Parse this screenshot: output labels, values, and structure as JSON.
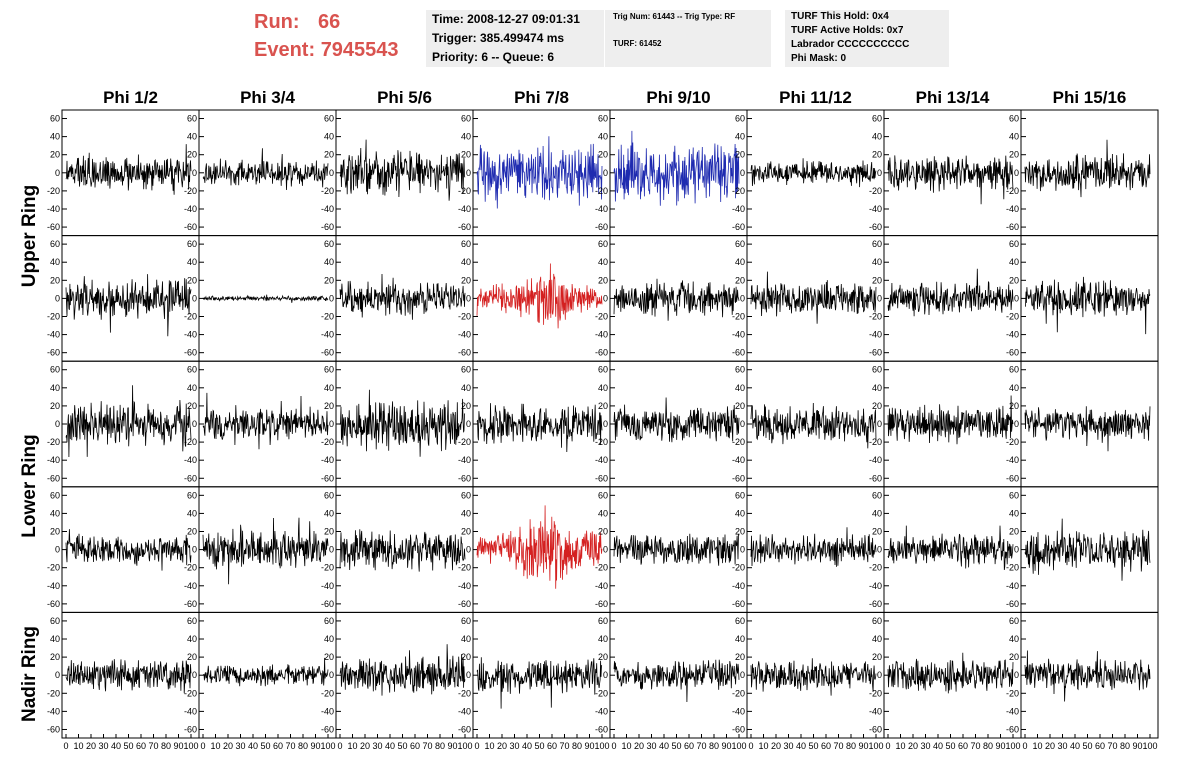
{
  "run": {
    "run_label": "Run:",
    "run_value": "66",
    "event_label": "Event:",
    "event_value": "7945543"
  },
  "info_time": {
    "time": "Time: 2008-12-27 09:01:31",
    "trigger": "Trigger: 385.499474 ms",
    "priority": "Priority: 6 -- Queue: 6"
  },
  "info_trig": {
    "trig": "Trig Num: 61443 -- Trig Type: RF",
    "turf": "TURF: 61452"
  },
  "info_turf": {
    "this_hold": "TURF This Hold: 0x4",
    "active_holds": "TURF Active Holds: 0x7",
    "labrador": "Labrador CCCCCCCCCC",
    "phi_mask": "Phi Mask: 0"
  },
  "columns": [
    "Phi 1/2",
    "Phi 3/4",
    "Phi 5/6",
    "Phi 7/8",
    "Phi 9/10",
    "Phi 11/12",
    "Phi 13/14",
    "Phi 15/16"
  ],
  "row_labels": {
    "upper": "Upper Ring",
    "lower": "Lower Ring",
    "nadir": "Nadir Ring"
  },
  "colors": {
    "normal": "#000000",
    "triggered": "#1f2bb0",
    "triggered_alt": "#d42020",
    "title_red": "#d9534f",
    "box_bg": "#eeeeee"
  },
  "chart_data": {
    "type": "line",
    "layout": "grid of 5 rows x 8 columns of waveform panels",
    "ylim": [
      -65,
      65
    ],
    "xlim": [
      0,
      100
    ],
    "yticks": [
      "60",
      "40",
      "20",
      "0",
      "-20",
      "-40",
      "-60"
    ],
    "xticks": [
      "0",
      "10",
      "20",
      "30",
      "40",
      "50",
      "60",
      "70",
      "80",
      "90",
      "100"
    ],
    "panel_rows": 5,
    "panel_cols": 8,
    "panels": [
      {
        "row": 0,
        "col": 0,
        "color": "normal",
        "amp": 14
      },
      {
        "row": 0,
        "col": 1,
        "color": "normal",
        "amp": 11
      },
      {
        "row": 0,
        "col": 2,
        "color": "normal",
        "amp": 20
      },
      {
        "row": 0,
        "col": 3,
        "color": "triggered",
        "amp": 24
      },
      {
        "row": 0,
        "col": 4,
        "color": "triggered",
        "amp": 26
      },
      {
        "row": 0,
        "col": 5,
        "color": "normal",
        "amp": 10
      },
      {
        "row": 0,
        "col": 6,
        "color": "normal",
        "amp": 15
      },
      {
        "row": 0,
        "col": 7,
        "color": "normal",
        "amp": 16
      },
      {
        "row": 1,
        "col": 0,
        "color": "normal",
        "amp": 17
      },
      {
        "row": 1,
        "col": 1,
        "color": "normal",
        "amp": 2
      },
      {
        "row": 1,
        "col": 2,
        "color": "normal",
        "amp": 15
      },
      {
        "row": 1,
        "col": 3,
        "color": "triggered_alt",
        "amp": 18
      },
      {
        "row": 1,
        "col": 4,
        "color": "normal",
        "amp": 15
      },
      {
        "row": 1,
        "col": 5,
        "color": "normal",
        "amp": 14
      },
      {
        "row": 1,
        "col": 6,
        "color": "normal",
        "amp": 14
      },
      {
        "row": 1,
        "col": 7,
        "color": "normal",
        "amp": 16
      },
      {
        "row": 2,
        "col": 0,
        "color": "normal",
        "amp": 18
      },
      {
        "row": 2,
        "col": 1,
        "color": "normal",
        "amp": 14
      },
      {
        "row": 2,
        "col": 2,
        "color": "normal",
        "amp": 22
      },
      {
        "row": 2,
        "col": 3,
        "color": "normal",
        "amp": 18
      },
      {
        "row": 2,
        "col": 4,
        "color": "normal",
        "amp": 15
      },
      {
        "row": 2,
        "col": 5,
        "color": "normal",
        "amp": 16
      },
      {
        "row": 2,
        "col": 6,
        "color": "normal",
        "amp": 16
      },
      {
        "row": 2,
        "col": 7,
        "color": "normal",
        "amp": 13
      },
      {
        "row": 3,
        "col": 0,
        "color": "normal",
        "amp": 13
      },
      {
        "row": 3,
        "col": 1,
        "color": "normal",
        "amp": 17
      },
      {
        "row": 3,
        "col": 2,
        "color": "normal",
        "amp": 17
      },
      {
        "row": 3,
        "col": 3,
        "color": "triggered_alt",
        "amp": 24
      },
      {
        "row": 3,
        "col": 4,
        "color": "normal",
        "amp": 13
      },
      {
        "row": 3,
        "col": 5,
        "color": "normal",
        "amp": 13
      },
      {
        "row": 3,
        "col": 6,
        "color": "normal",
        "amp": 13
      },
      {
        "row": 3,
        "col": 7,
        "color": "normal",
        "amp": 17
      },
      {
        "row": 4,
        "col": 0,
        "color": "normal",
        "amp": 13
      },
      {
        "row": 4,
        "col": 1,
        "color": "normal",
        "amp": 9
      },
      {
        "row": 4,
        "col": 2,
        "color": "normal",
        "amp": 16
      },
      {
        "row": 4,
        "col": 3,
        "color": "normal",
        "amp": 15
      },
      {
        "row": 4,
        "col": 4,
        "color": "normal",
        "amp": 13
      },
      {
        "row": 4,
        "col": 5,
        "color": "normal",
        "amp": 13
      },
      {
        "row": 4,
        "col": 6,
        "color": "normal",
        "amp": 13
      },
      {
        "row": 4,
        "col": 7,
        "color": "normal",
        "amp": 13
      }
    ]
  }
}
